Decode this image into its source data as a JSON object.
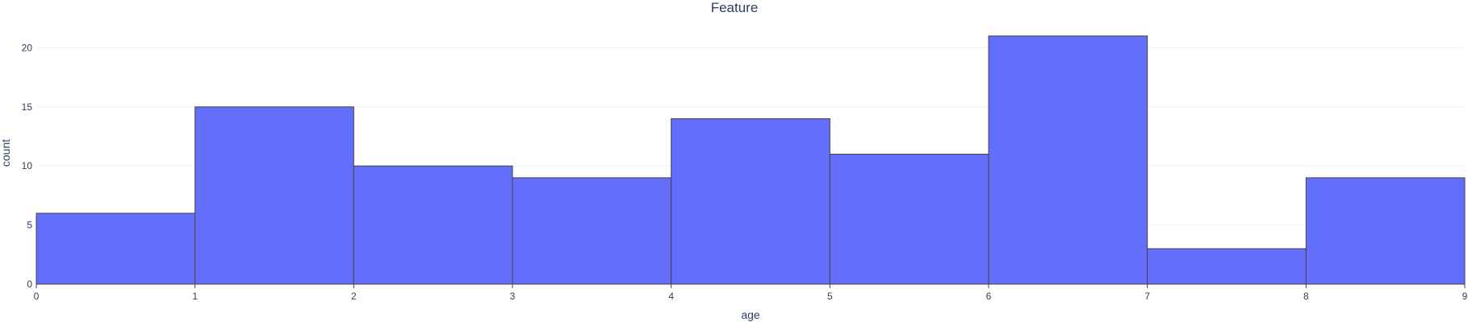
{
  "chart_data": {
    "type": "bar",
    "title": "Feature",
    "xlabel": "age",
    "ylabel": "count",
    "bins": [
      {
        "start": 0,
        "end": 1,
        "count": 6
      },
      {
        "start": 1,
        "end": 2,
        "count": 15
      },
      {
        "start": 2,
        "end": 3,
        "count": 10
      },
      {
        "start": 3,
        "end": 4,
        "count": 9
      },
      {
        "start": 4,
        "end": 5,
        "count": 14
      },
      {
        "start": 5,
        "end": 6,
        "count": 11
      },
      {
        "start": 6,
        "end": 7,
        "count": 21
      },
      {
        "start": 7,
        "end": 8,
        "count": 3
      },
      {
        "start": 8,
        "end": 9,
        "count": 9
      }
    ],
    "xlim": [
      0,
      9
    ],
    "ylim": [
      0,
      22
    ],
    "xticks": [
      0,
      1,
      2,
      3,
      4,
      5,
      6,
      7,
      8,
      9
    ],
    "yticks": [
      0,
      5,
      10,
      15,
      20
    ],
    "grid": true,
    "colors": {
      "bar": "#636efa",
      "bar_outline": "#444444",
      "text": "#2a3f5f",
      "grid": "#ebf0f8"
    }
  }
}
